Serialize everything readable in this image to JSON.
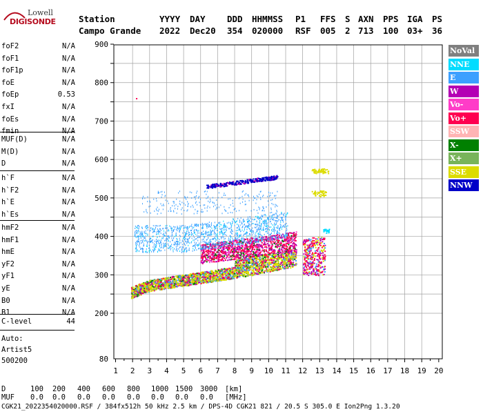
{
  "logo": {
    "top": "Lowell",
    "bottom": "DIGISONDE"
  },
  "header": {
    "line1": [
      "Station",
      "YYYY",
      "DAY",
      "DDD",
      "HHMMSS",
      "P1",
      "FFS",
      "S",
      "AXN",
      "PPS",
      "IGA",
      "PS"
    ],
    "line2": [
      "Campo Grande",
      "2022",
      "Dec20",
      "354",
      "020000",
      "RSF",
      "005",
      "2",
      "713",
      "100",
      "03+",
      "36"
    ]
  },
  "params": {
    "group1": [
      {
        "name": "foF2",
        "value": "N/A"
      },
      {
        "name": "foF1",
        "value": "N/A"
      },
      {
        "name": "foF1p",
        "value": "N/A"
      },
      {
        "name": "foE",
        "value": "N/A"
      },
      {
        "name": "foEp",
        "value": "0.53"
      },
      {
        "name": "fxI",
        "value": "N/A"
      },
      {
        "name": "foEs",
        "value": "N/A"
      },
      {
        "name": "fmin",
        "value": "N/A"
      }
    ],
    "group2": [
      {
        "name": "MUF(D)",
        "value": "N/A"
      },
      {
        "name": "M(D)",
        "value": "N/A"
      },
      {
        "name": "D",
        "value": "N/A"
      }
    ],
    "group3": [
      {
        "name": "h`F",
        "value": "N/A"
      },
      {
        "name": "h`F2",
        "value": "N/A"
      },
      {
        "name": "h`E",
        "value": "N/A"
      },
      {
        "name": "h`Es",
        "value": "N/A"
      }
    ],
    "group4": [
      {
        "name": "hmF2",
        "value": "N/A"
      },
      {
        "name": "hmF1",
        "value": "N/A"
      },
      {
        "name": "hmE",
        "value": "N/A"
      },
      {
        "name": "yF2",
        "value": "N/A"
      },
      {
        "name": "yF1",
        "value": "N/A"
      },
      {
        "name": "yE",
        "value": "N/A"
      },
      {
        "name": "B0",
        "value": "N/A"
      },
      {
        "name": "B1",
        "value": "N/A"
      }
    ],
    "clevel": {
      "name": "C-level",
      "value": "44"
    }
  },
  "auto": {
    "label": "Auto:",
    "artist": "Artist5",
    "version": "500200"
  },
  "legend": [
    {
      "label": "NoVal",
      "color": "#808080"
    },
    {
      "label": "NNE",
      "color": "#00dcff"
    },
    {
      "label": "E",
      "color": "#3ca0ff"
    },
    {
      "label": "W",
      "color": "#b400b4"
    },
    {
      "label": "Vo-",
      "color": "#ff3cc8"
    },
    {
      "label": "Vo+",
      "color": "#ff0050"
    },
    {
      "label": "SSW",
      "color": "#ffb4b4"
    },
    {
      "label": "X-",
      "color": "#008000"
    },
    {
      "label": "X+",
      "color": "#78b45a"
    },
    {
      "label": "SSE",
      "color": "#dcdc00"
    },
    {
      "label": "NNW",
      "color": "#0000c8"
    }
  ],
  "chart_data": {
    "type": "scatter",
    "xlim": [
      1,
      20
    ],
    "ylim": [
      80,
      900
    ],
    "xticks": [
      "1",
      "2",
      "3",
      "4",
      "5",
      "6",
      "7",
      "8",
      "9",
      "10",
      "11",
      "12",
      "13",
      "14",
      "15",
      "16",
      "17",
      "18",
      "19",
      "20"
    ],
    "yticks": [
      "80",
      "200",
      "300",
      "400",
      "500",
      "600",
      "700",
      "800",
      "900"
    ],
    "grid": true,
    "ionogram": {
      "freq_range_mhz": [
        1.9,
        13.6
      ],
      "lower_trace": {
        "x": [
          1.9,
          3,
          5,
          7,
          9,
          11,
          11.6
        ],
        "y": [
          240,
          258,
          272,
          285,
          300,
          318,
          322
        ]
      },
      "e_band": {
        "x": [
          2.2,
          7.5
        ],
        "y_range": [
          370,
          420
        ]
      },
      "nnw_trace": {
        "x": [
          6.3,
          10.5
        ],
        "y": [
          530,
          555
        ]
      },
      "sse_cluster": {
        "x": [
          12.5,
          13.5
        ],
        "y": [
          505,
          575
        ]
      }
    },
    "stray_points": [
      {
        "x": 2.2,
        "y": 760,
        "series": "Vo+"
      }
    ]
  },
  "footer": {
    "d_label": "D",
    "d_values": [
      "100",
      "200",
      "400",
      "600",
      "800",
      "1000",
      "1500",
      "3000",
      "[km]"
    ],
    "muf_label": "MUF",
    "muf_values": [
      "0.0",
      "0.0",
      "0.0",
      "0.0",
      "0.0",
      "0.0",
      "0.0",
      "0.0",
      "[MHz]"
    ],
    "file_line": "CGK21_2022354020000.RSF / 384fx512h 50 kHz 2.5 km / DPS-4D CGK21 821 / 20.5 S 305.0 E Ion2Png 1.3.20"
  }
}
